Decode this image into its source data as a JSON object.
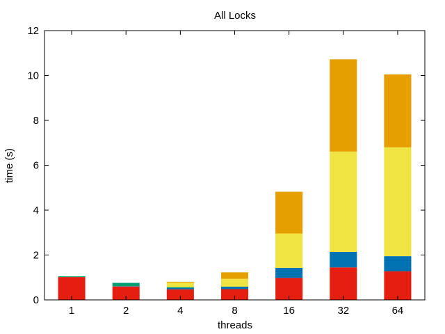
{
  "chart_data": {
    "type": "bar",
    "stacked": true,
    "title": "All Locks",
    "xlabel": "threads",
    "ylabel": "time (s)",
    "ylim": [
      0,
      12
    ],
    "yticks": [
      "0",
      "2",
      "4",
      "6",
      "8",
      "10",
      "12"
    ],
    "categories": [
      "1",
      "2",
      "4",
      "8",
      "16",
      "32",
      "64"
    ],
    "grid": false,
    "legend": "none",
    "series": [
      {
        "color": "#e51e10",
        "values": [
          1.02,
          0.6,
          0.47,
          0.48,
          0.98,
          1.45,
          1.27
        ]
      },
      {
        "color": "#0072b2",
        "values": [
          0.0,
          0.01,
          0.06,
          0.11,
          0.45,
          0.69,
          0.68
        ]
      },
      {
        "color": "#009e73",
        "values": [
          0.03,
          0.15,
          0.04,
          0.0,
          0.0,
          0.0,
          0.0
        ]
      },
      {
        "color": "#f0e442",
        "values": [
          0.0,
          0.0,
          0.2,
          0.35,
          1.53,
          4.47,
          4.85
        ]
      },
      {
        "color": "#e69f00",
        "values": [
          0.0,
          0.0,
          0.04,
          0.29,
          1.86,
          4.11,
          3.25
        ]
      }
    ]
  }
}
